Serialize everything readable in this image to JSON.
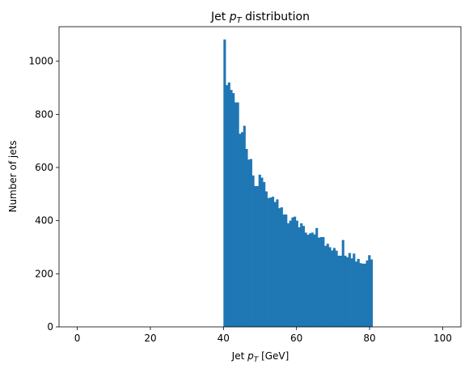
{
  "chart_data": {
    "type": "bar",
    "title_prefix": "Jet ",
    "title_var": "p",
    "title_sub": "T",
    "title_suffix": " distribution",
    "xlabel_prefix": "Jet ",
    "xlabel_var": "p",
    "xlabel_sub": "T",
    "xlabel_suffix": " [GeV]",
    "ylabel": "Number of jets",
    "xlim": [
      -5,
      105
    ],
    "ylim": [
      0,
      1130
    ],
    "xticks": [
      0,
      20,
      40,
      60,
      80,
      100
    ],
    "yticks": [
      0,
      200,
      400,
      600,
      800,
      1000
    ],
    "bar_color": "#1f77b4",
    "grid": false,
    "bin_start": 40,
    "bin_width": 0.6,
    "values": [
      1082,
      910,
      920,
      892,
      880,
      845,
      845,
      727,
      733,
      757,
      670,
      630,
      632,
      570,
      530,
      530,
      573,
      562,
      545,
      510,
      485,
      487,
      490,
      470,
      480,
      447,
      450,
      423,
      423,
      390,
      400,
      412,
      415,
      400,
      375,
      390,
      380,
      355,
      347,
      352,
      355,
      348,
      372,
      336,
      338,
      338,
      305,
      313,
      300,
      288,
      297,
      287,
      268,
      268,
      327,
      268,
      262,
      278,
      258,
      276,
      246,
      256,
      240,
      238,
      238,
      250,
      270,
      254
    ]
  }
}
